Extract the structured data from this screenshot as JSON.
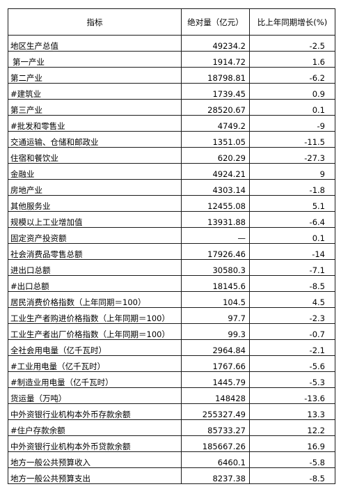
{
  "table": {
    "headers": [
      "指标",
      "绝对量（亿元）",
      "比上年同期增长(%)"
    ],
    "rows": [
      {
        "name": "地区生产总值",
        "value": "49234.2",
        "growth": "-2.5"
      },
      {
        "name": "第一产业",
        "value": "1914.72",
        "growth": "1.6",
        "indent": true
      },
      {
        "name": "第二产业",
        "value": "18798.81",
        "growth": "-6.2"
      },
      {
        "name": "#建筑业",
        "value": "1739.45",
        "growth": "0.9"
      },
      {
        "name": "第三产业",
        "value": "28520.67",
        "growth": "0.1"
      },
      {
        "name": "#批发和零售业",
        "value": "4749.2",
        "growth": "-9"
      },
      {
        "name": "交通运输、仓储和邮政业",
        "value": "1351.05",
        "growth": "-11.5"
      },
      {
        "name": "住宿和餐饮业",
        "value": "620.29",
        "growth": "-27.3"
      },
      {
        "name": "金融业",
        "value": "4924.21",
        "growth": "9"
      },
      {
        "name": "房地产业",
        "value": "4303.14",
        "growth": "-1.8"
      },
      {
        "name": "其他服务业",
        "value": "12455.08",
        "growth": "5.1"
      },
      {
        "name": "规模以上工业增加值",
        "value": "13931.88",
        "growth": "-6.4"
      },
      {
        "name": "固定资产投资额",
        "value": "—",
        "growth": "0.1"
      },
      {
        "name": "社会消费品零售总额",
        "value": "17926.46",
        "growth": "-14"
      },
      {
        "name": "进出口总额",
        "value": "30580.3",
        "growth": "-7.1"
      },
      {
        "name": "#出口总额",
        "value": "18145.6",
        "growth": "-8.5"
      },
      {
        "name": "居民消费价格指数（上年同期＝100）",
        "value": "104.5",
        "growth": "4.5"
      },
      {
        "name": "工业生产者购进价格指数（上年同期＝100）",
        "value": "97.7",
        "growth": "-2.3"
      },
      {
        "name": "工业生产者出厂价格指数（上年同期＝100）",
        "value": "99.3",
        "growth": "-0.7"
      },
      {
        "name": "全社会用电量（亿千瓦时）",
        "value": "2964.84",
        "growth": "-2.1"
      },
      {
        "name": "#工业用电量（亿千瓦时）",
        "value": "1767.66",
        "growth": "-5.6"
      },
      {
        "name": "#制造业用电量（亿千瓦时）",
        "value": "1445.79",
        "growth": "-5.3"
      },
      {
        "name": "货运量（万吨）",
        "value": "148428",
        "growth": "-13.6"
      },
      {
        "name": "中外资银行业机构本外币存款余额",
        "value": "255327.49",
        "growth": "13.3"
      },
      {
        "name": "#住户存款余额",
        "value": "85733.27",
        "growth": "12.2"
      },
      {
        "name": "中外资银行业机构本外币贷款余额",
        "value": "185667.26",
        "growth": "16.9"
      },
      {
        "name": "地方一般公共预算收入",
        "value": "6460.1",
        "growth": "-5.8"
      },
      {
        "name": "地方一般公共预算支出",
        "value": "8237.38",
        "growth": "-8.5"
      }
    ]
  }
}
